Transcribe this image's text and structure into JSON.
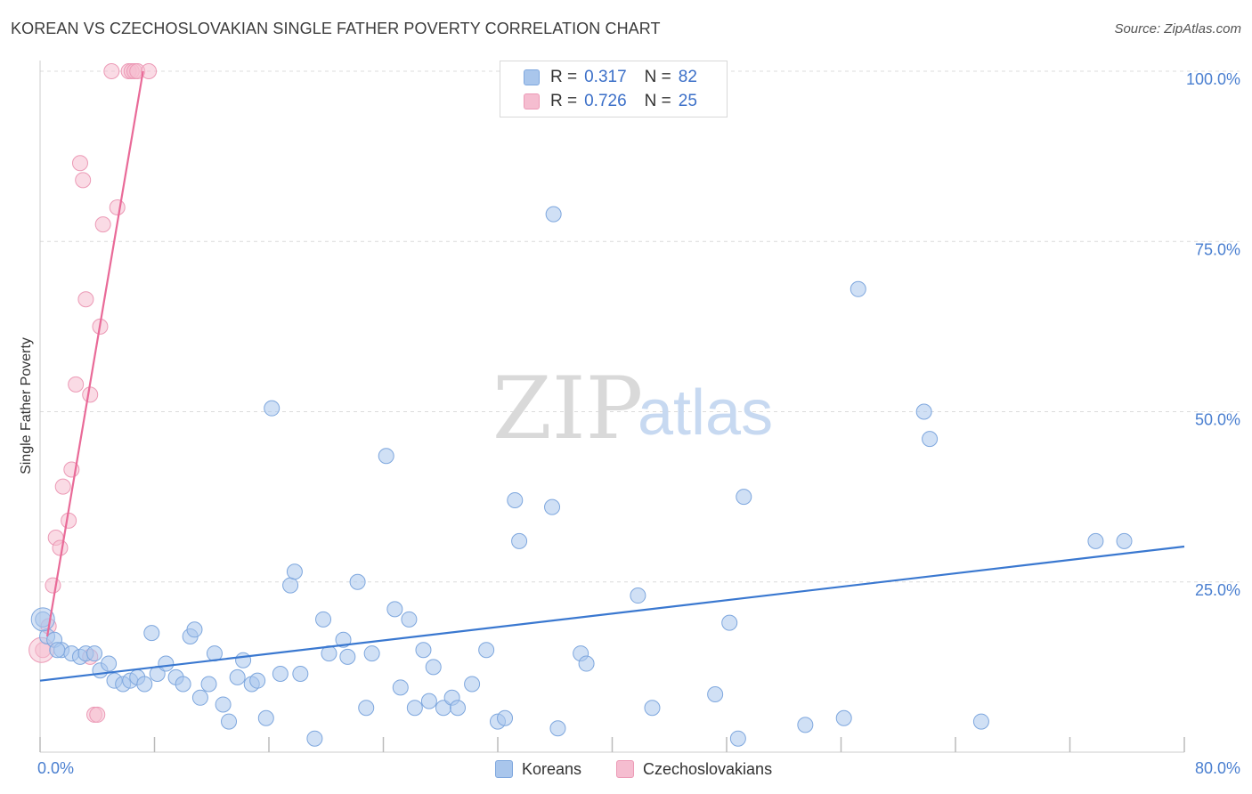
{
  "header": {
    "title": "KOREAN VS CZECHOSLOVAKIAN SINGLE FATHER POVERTY CORRELATION CHART",
    "source": "Source: ZipAtlas.com"
  },
  "legend": {
    "rows": [
      {
        "r_label": "R =",
        "r_value": "0.317",
        "n_label": "N =",
        "n_value": "82"
      },
      {
        "r_label": "R =",
        "r_value": "0.726",
        "n_label": "N =",
        "n_value": "25"
      }
    ]
  },
  "bottom_legend": {
    "koreans": "Koreans",
    "czechoslovakians": "Czechoslovakians"
  },
  "watermark": {
    "zip": "ZIP",
    "atlas": "atlas"
  },
  "colors": {
    "blue_fill": "#a9c6ec",
    "blue_stroke": "#7ea7de",
    "blue_line": "#3a78d0",
    "pink_fill": "#f5bdd0",
    "pink_stroke": "#ec9ab6",
    "pink_line": "#e96a98",
    "tick": "#4a7fd0",
    "grid": "#dcdcdc"
  },
  "chart_data": {
    "type": "scatter",
    "title": "KOREAN VS CZECHOSLOVAKIAN SINGLE FATHER POVERTY CORRELATION CHART",
    "xlabel": "",
    "ylabel": "Single Father Poverty",
    "xlim": [
      0,
      80
    ],
    "ylim": [
      0,
      100
    ],
    "x_ticks": [
      "0.0%",
      "80.0%"
    ],
    "y_ticks": [
      "25.0%",
      "50.0%",
      "75.0%",
      "100.0%"
    ],
    "grid": true,
    "series": [
      {
        "name": "Koreans",
        "R": 0.317,
        "N": 82,
        "trend": {
          "x": [
            0,
            80
          ],
          "y": [
            10.5,
            30.2
          ]
        },
        "points": [
          [
            0.2,
            19.5
          ],
          [
            0.5,
            17.0
          ],
          [
            1.0,
            16.5
          ],
          [
            1.5,
            15.0
          ],
          [
            2.2,
            14.5
          ],
          [
            2.8,
            14.0
          ],
          [
            3.2,
            14.5
          ],
          [
            3.8,
            14.5
          ],
          [
            4.2,
            12.0
          ],
          [
            4.8,
            13.0
          ],
          [
            5.2,
            10.5
          ],
          [
            5.8,
            10.0
          ],
          [
            6.3,
            10.5
          ],
          [
            6.8,
            11.0
          ],
          [
            7.3,
            10.0
          ],
          [
            7.8,
            17.5
          ],
          [
            8.2,
            11.5
          ],
          [
            8.8,
            13.0
          ],
          [
            9.5,
            11.0
          ],
          [
            10.0,
            10.0
          ],
          [
            10.5,
            17.0
          ],
          [
            10.8,
            18.0
          ],
          [
            11.2,
            8.0
          ],
          [
            11.8,
            10.0
          ],
          [
            12.2,
            14.5
          ],
          [
            12.8,
            7.0
          ],
          [
            13.2,
            4.5
          ],
          [
            13.8,
            11.0
          ],
          [
            14.2,
            13.5
          ],
          [
            14.8,
            10.0
          ],
          [
            15.2,
            10.5
          ],
          [
            15.8,
            5.0
          ],
          [
            16.2,
            50.5
          ],
          [
            16.8,
            11.5
          ],
          [
            17.5,
            24.5
          ],
          [
            17.8,
            26.5
          ],
          [
            18.2,
            11.5
          ],
          [
            19.2,
            2.0
          ],
          [
            19.8,
            19.5
          ],
          [
            20.2,
            14.5
          ],
          [
            21.2,
            16.5
          ],
          [
            21.5,
            14.0
          ],
          [
            22.2,
            25.0
          ],
          [
            22.8,
            6.5
          ],
          [
            23.2,
            14.5
          ],
          [
            24.2,
            43.5
          ],
          [
            24.8,
            21.0
          ],
          [
            25.2,
            9.5
          ],
          [
            25.8,
            19.5
          ],
          [
            26.2,
            6.5
          ],
          [
            26.8,
            15.0
          ],
          [
            27.2,
            7.5
          ],
          [
            27.5,
            12.5
          ],
          [
            28.2,
            6.5
          ],
          [
            28.8,
            8.0
          ],
          [
            29.2,
            6.5
          ],
          [
            30.2,
            10.0
          ],
          [
            31.2,
            15.0
          ],
          [
            32.0,
            4.5
          ],
          [
            32.5,
            5.0
          ],
          [
            33.2,
            37.0
          ],
          [
            33.5,
            31.0
          ],
          [
            35.8,
            36.0
          ],
          [
            36.2,
            3.5
          ],
          [
            37.8,
            14.5
          ],
          [
            38.2,
            13.0
          ],
          [
            41.8,
            23.0
          ],
          [
            42.8,
            6.5
          ],
          [
            35.9,
            79.0
          ],
          [
            47.2,
            8.5
          ],
          [
            48.2,
            19.0
          ],
          [
            48.8,
            2.0
          ],
          [
            49.2,
            37.5
          ],
          [
            53.5,
            4.0
          ],
          [
            56.2,
            5.0
          ],
          [
            57.2,
            68.0
          ],
          [
            61.8,
            50.0
          ],
          [
            62.2,
            46.0
          ],
          [
            65.8,
            4.5
          ],
          [
            73.8,
            31.0
          ],
          [
            75.8,
            31.0
          ],
          [
            1.2,
            15.0
          ]
        ]
      },
      {
        "name": "Czechoslovakians",
        "R": 0.726,
        "N": 25,
        "trend": {
          "x": [
            0.5,
            7.2
          ],
          "y": [
            17.0,
            100.0
          ]
        },
        "points": [
          [
            0.2,
            15.0
          ],
          [
            0.6,
            18.5
          ],
          [
            0.9,
            24.5
          ],
          [
            1.1,
            31.5
          ],
          [
            1.4,
            30.0
          ],
          [
            1.6,
            39.0
          ],
          [
            2.0,
            34.0
          ],
          [
            2.2,
            41.5
          ],
          [
            2.5,
            54.0
          ],
          [
            2.8,
            86.5
          ],
          [
            3.0,
            84.0
          ],
          [
            3.2,
            66.5
          ],
          [
            3.5,
            52.5
          ],
          [
            3.8,
            5.5
          ],
          [
            4.0,
            5.5
          ],
          [
            4.2,
            62.5
          ],
          [
            4.4,
            77.5
          ],
          [
            5.0,
            100.0
          ],
          [
            5.4,
            80.0
          ],
          [
            6.2,
            100.0
          ],
          [
            6.4,
            100.0
          ],
          [
            6.6,
            100.0
          ],
          [
            6.8,
            100.0
          ],
          [
            7.6,
            100.0
          ],
          [
            3.5,
            14.0
          ]
        ]
      }
    ]
  }
}
